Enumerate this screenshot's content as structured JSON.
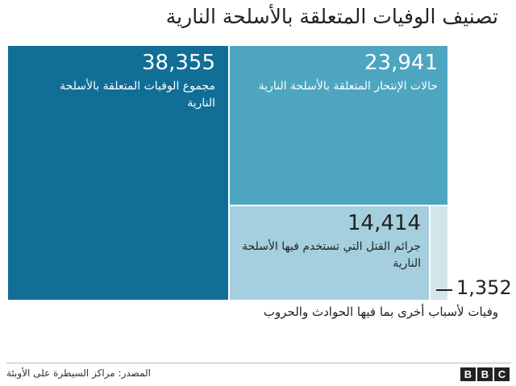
{
  "title": "تصنيف الوفيات المتعلقة بالأسلحة النارية",
  "chart_data": {
    "type": "treemap",
    "total": {
      "value": 38355,
      "value_text": "38,355",
      "label": "مجموع الوفيات المتعلقة بالأسلحة النارية",
      "color": "#116e96"
    },
    "children": [
      {
        "name": "suicides",
        "value": 23941,
        "value_text": "23,941",
        "label": "حالات الإنتحار المتعلقة بالأسلحة النارية",
        "color": "#4da5c0"
      },
      {
        "name": "homicides",
        "value": 14414,
        "value_text": "14,414",
        "label": "جرائم القتل التي تستخدم فيها الأسلحة النارية",
        "color": "#a5cfde"
      },
      {
        "name": "other",
        "value": 1352,
        "value_text": "1,352",
        "label": "وفيات لأسباب أخرى بما فيها الحوادث والحروب",
        "color": "#d3e5ea"
      }
    ]
  },
  "footer": {
    "source": "المصدر: مراكز السيطرة على الأوبئة",
    "logo": [
      "B",
      "B",
      "C"
    ]
  }
}
